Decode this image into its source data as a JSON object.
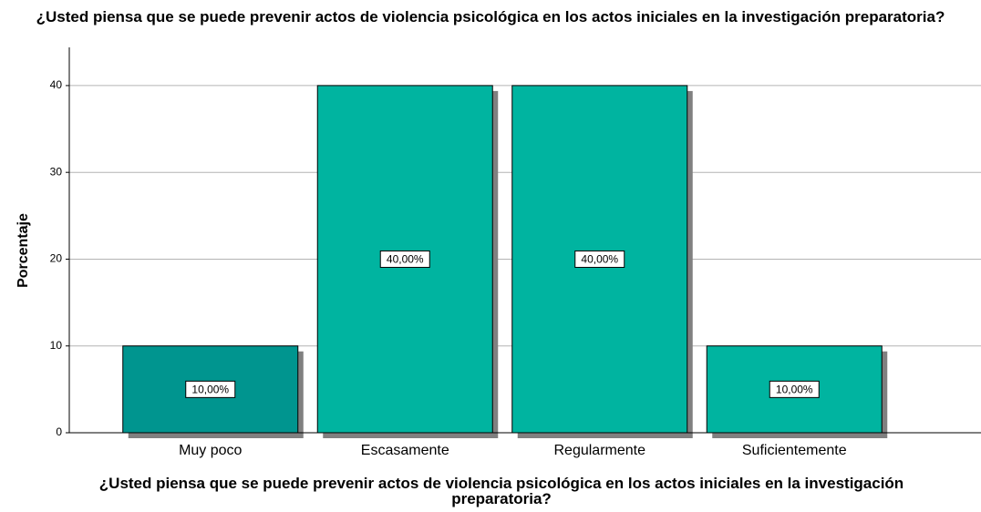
{
  "chart_data": {
    "type": "bar",
    "title": "¿Usted piensa que se puede prevenir actos de violencia psicológica en los actos iniciales en la investigación preparatoria?",
    "x_label": "¿Usted piensa que se puede prevenir actos de violencia psicológica en los actos iniciales en la investigación preparatoria?",
    "y_label": "Porcentaje",
    "categories": [
      "Muy poco",
      "Escasamente",
      "Regularmente",
      "Suficientemente"
    ],
    "values": [
      10,
      40,
      40,
      10
    ],
    "value_labels": [
      "10,00%",
      "40,00%",
      "40,00%",
      "10,00%"
    ],
    "colors": [
      "#00958f",
      "#00b4a0",
      "#00b4a0",
      "#00b4a0"
    ],
    "ylim": [
      0,
      44.4
    ],
    "yticks": [
      0,
      10,
      20,
      30,
      40
    ],
    "grid": true
  }
}
